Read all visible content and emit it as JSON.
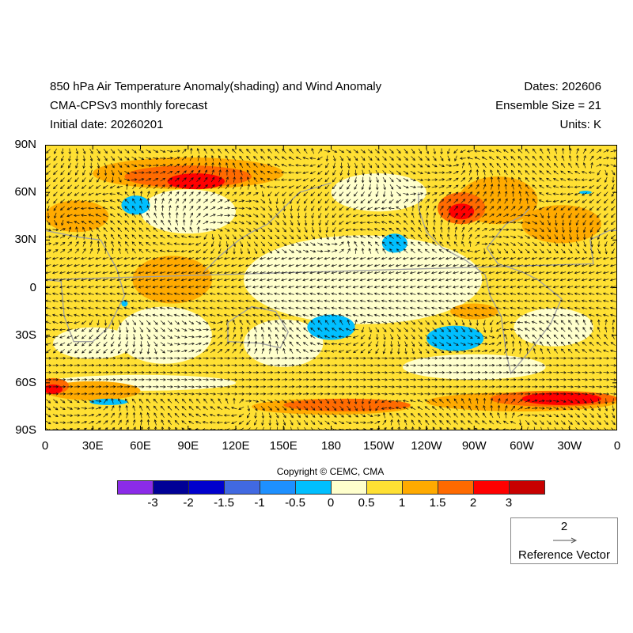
{
  "header": {
    "title": "850 hPa Air Temperature Anomaly(shading) and Wind Anomaly",
    "subtitle": "CMA-CPSv3 monthly forecast",
    "initial_date": "Initial date: 20260201",
    "dates": "Dates: 202606",
    "ensemble": "Ensemble Size = 21",
    "units": "Units: K"
  },
  "chart_data": {
    "type": "heatmap",
    "title": "850 hPa Air Temperature Anomaly(shading) and Wind Anomaly",
    "lat_ticks": [
      "90N",
      "60N",
      "30N",
      "0",
      "30S",
      "60S",
      "90S"
    ],
    "lat_values": [
      90,
      60,
      30,
      0,
      -30,
      -60,
      -90
    ],
    "lon_ticks": [
      "0",
      "30E",
      "60E",
      "90E",
      "120E",
      "150E",
      "180",
      "150W",
      "120W",
      "90W",
      "60W",
      "30W",
      "0"
    ],
    "lon_values": [
      0,
      30,
      60,
      90,
      120,
      150,
      180,
      210,
      240,
      270,
      300,
      330,
      360
    ],
    "xlim": [
      0,
      360
    ],
    "ylim": [
      -90,
      90
    ],
    "background_level": "0.5-1",
    "anomaly_regions": [
      {
        "lon": 200,
        "lat": 5,
        "rlon": 75,
        "rlat": 28,
        "level": "0-0.5"
      },
      {
        "lon": 75,
        "lat": -30,
        "rlon": 30,
        "rlat": 18,
        "level": "0-0.5"
      },
      {
        "lon": 30,
        "lat": -35,
        "rlon": 25,
        "rlat": 10,
        "level": "0-0.5"
      },
      {
        "lon": 150,
        "lat": -35,
        "rlon": 25,
        "rlat": 15,
        "level": "0-0.5"
      },
      {
        "lon": 270,
        "lat": -50,
        "rlon": 45,
        "rlat": 8,
        "level": "0-0.5"
      },
      {
        "lon": 90,
        "lat": 48,
        "rlon": 30,
        "rlat": 14,
        "level": "0-0.5"
      },
      {
        "lon": 210,
        "lat": 60,
        "rlon": 30,
        "rlat": 12,
        "level": "0-0.5"
      },
      {
        "lon": 320,
        "lat": -25,
        "rlon": 25,
        "rlat": 12,
        "level": "0-0.5"
      },
      {
        "lon": 60,
        "lat": -60,
        "rlon": 60,
        "rlat": 5,
        "level": "0-0.5"
      },
      {
        "lon": 90,
        "lat": 72,
        "rlon": 60,
        "rlat": 10,
        "level": "1-1.5"
      },
      {
        "lon": 285,
        "lat": 55,
        "rlon": 25,
        "rlat": 15,
        "level": "1-1.5"
      },
      {
        "lon": 20,
        "lat": 45,
        "rlon": 20,
        "rlat": 10,
        "level": "1-1.5"
      },
      {
        "lon": 30,
        "lat": -65,
        "rlon": 30,
        "rlat": 6,
        "level": "1-1.5"
      },
      {
        "lon": 300,
        "lat": -72,
        "rlon": 60,
        "rlat": 6,
        "level": "1-1.5"
      },
      {
        "lon": 180,
        "lat": -75,
        "rlon": 50,
        "rlat": 5,
        "level": "1-1.5"
      },
      {
        "lon": 270,
        "lat": -15,
        "rlon": 15,
        "rlat": 5,
        "level": "1-1.5"
      },
      {
        "lon": 80,
        "lat": 5,
        "rlon": 25,
        "rlat": 15,
        "level": "1-1.5"
      },
      {
        "lon": 325,
        "lat": 40,
        "rlon": 25,
        "rlat": 12,
        "level": "1-1.5"
      },
      {
        "lon": 90,
        "lat": 70,
        "rlon": 40,
        "rlat": 7,
        "level": "1.5-2"
      },
      {
        "lon": 262,
        "lat": 50,
        "rlon": 15,
        "rlat": 10,
        "level": "1.5-2"
      },
      {
        "lon": 5,
        "lat": -62,
        "rlon": 10,
        "rlat": 5,
        "level": "1.5-2"
      },
      {
        "lon": 320,
        "lat": -70,
        "rlon": 40,
        "rlat": 5,
        "level": "1.5-2"
      },
      {
        "lon": 190,
        "lat": -74,
        "rlon": 40,
        "rlat": 4,
        "level": "1.5-2"
      },
      {
        "lon": 95,
        "lat": 67,
        "rlon": 18,
        "rlat": 5,
        "level": "2-3"
      },
      {
        "lon": 262,
        "lat": 48,
        "rlon": 8,
        "rlat": 5,
        "level": "2-3"
      },
      {
        "lon": 325,
        "lat": -70,
        "rlon": 25,
        "rlat": 4,
        "level": "2-3"
      },
      {
        "lon": 5,
        "lat": -64,
        "rlon": 6,
        "rlat": 3,
        "level": "2-3"
      },
      {
        "lon": 57,
        "lat": 52,
        "rlon": 9,
        "rlat": 6,
        "level": "-0.5-0"
      },
      {
        "lon": 220,
        "lat": 28,
        "rlon": 8,
        "rlat": 6,
        "level": "-0.5-0"
      },
      {
        "lon": 180,
        "lat": -25,
        "rlon": 15,
        "rlat": 8,
        "level": "-0.5-0"
      },
      {
        "lon": 258,
        "lat": -32,
        "rlon": 18,
        "rlat": 8,
        "level": "-0.5-0"
      },
      {
        "lon": 40,
        "lat": -72,
        "rlon": 12,
        "rlat": 2,
        "level": "-0.5-0"
      },
      {
        "lon": 50,
        "lat": -10,
        "rlon": 2,
        "rlat": 2,
        "level": "-0.5-0"
      },
      {
        "lon": 340,
        "lat": 60,
        "rlon": 4,
        "rlat": 1,
        "level": "-0.5-0"
      }
    ]
  },
  "colorbar": {
    "copyright": "Copyright © CEMC, CMA",
    "colors": [
      "#8b2be8",
      "#000096",
      "#0000cd",
      "#4169e1",
      "#1e90ff",
      "#00bfff",
      "#ffffcc",
      "#ffe033",
      "#ffaa00",
      "#ff6a00",
      "#ff0000",
      "#c80000"
    ],
    "labels": [
      "-3",
      "-2",
      "-1.5",
      "-1",
      "-0.5",
      "0",
      "0.5",
      "1",
      "1.5",
      "2",
      "3"
    ],
    "level_colors": {
      "0-0.5": "#ffffcc",
      "0.5-1": "#ffe033",
      "1-1.5": "#ffaa00",
      "1.5-2": "#ff6a00",
      "2-3": "#ff0000",
      "-0.5-0": "#00bfff"
    }
  },
  "reference_vector": {
    "magnitude": "2",
    "label": "Reference Vector"
  }
}
